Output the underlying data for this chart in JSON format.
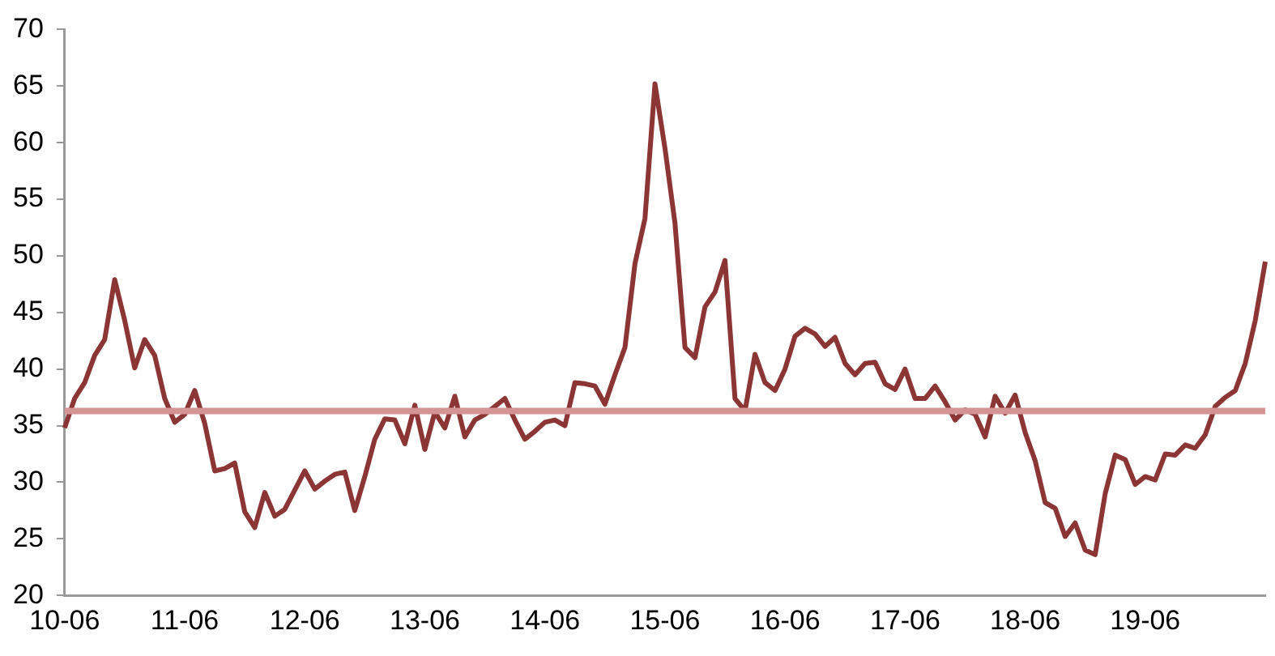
{
  "chart_data": {
    "type": "line",
    "categories": [
      "10-06",
      null,
      null,
      null,
      null,
      null,
      null,
      null,
      null,
      null,
      null,
      null,
      "11-06",
      null,
      null,
      null,
      null,
      null,
      null,
      null,
      null,
      null,
      null,
      null,
      "12-06",
      null,
      null,
      null,
      null,
      null,
      null,
      null,
      null,
      null,
      null,
      null,
      "13-06",
      null,
      null,
      null,
      null,
      null,
      null,
      null,
      null,
      null,
      null,
      null,
      "14-06",
      null,
      null,
      null,
      null,
      null,
      null,
      null,
      null,
      null,
      null,
      null,
      "15-06",
      null,
      null,
      null,
      null,
      null,
      null,
      null,
      null,
      null,
      null,
      null,
      "16-06",
      null,
      null,
      null,
      null,
      null,
      null,
      null,
      null,
      null,
      null,
      null,
      "17-06",
      null,
      null,
      null,
      null,
      null,
      null,
      null,
      null,
      null,
      null,
      null,
      "18-06",
      null,
      null,
      null,
      null,
      null,
      null,
      null,
      null,
      null,
      null,
      null,
      "19-06",
      null,
      null,
      null,
      null,
      null,
      null,
      null,
      null,
      null,
      null,
      null,
      null
    ],
    "series": [
      {
        "color": "#8b3535",
        "values": [
          34.8,
          37.4,
          38.8,
          41.2,
          42.6,
          47.9,
          44.3,
          40.1,
          42.6,
          41.2,
          37.4,
          35.3,
          36.0,
          38.1,
          35.2,
          31.0,
          31.2,
          31.7,
          27.4,
          26.0,
          29.1,
          27.0,
          27.6,
          29.3,
          31.0,
          29.4,
          30.1,
          30.7,
          30.9,
          27.5,
          30.5,
          33.8,
          35.6,
          35.5,
          33.4,
          36.8,
          32.9,
          36.2,
          34.8,
          37.6,
          34.0,
          35.5,
          36.0,
          36.7,
          37.4,
          35.5,
          33.8,
          34.5,
          35.3,
          35.5,
          35.0,
          38.8,
          38.7,
          38.5,
          36.9,
          39.5,
          41.9,
          49.3,
          53.3,
          65.2,
          59.5,
          52.9,
          41.9,
          41.0,
          45.5,
          46.8,
          49.6,
          37.4,
          36.3,
          41.3,
          38.8,
          38.1,
          40.0,
          42.9,
          43.6,
          43.1,
          42.0,
          42.8,
          40.5,
          39.5,
          40.5,
          40.6,
          38.7,
          38.2,
          40.0,
          37.4,
          37.4,
          38.5,
          37.1,
          35.5,
          36.4,
          36.0,
          34.0,
          37.6,
          36.1,
          37.7,
          34.4,
          31.9,
          28.2,
          27.7,
          25.2,
          26.4,
          24.0,
          23.6,
          29.0,
          32.4,
          32.0,
          29.8,
          30.5,
          30.2,
          32.5,
          32.4,
          33.3,
          33.0,
          34.2,
          36.7,
          37.5,
          38.1,
          40.5,
          44.3,
          49.5
        ]
      }
    ],
    "ylim": [
      20,
      70
    ],
    "yticks": [
      20,
      25,
      30,
      35,
      40,
      45,
      50,
      55,
      60,
      65,
      70
    ],
    "grid": false,
    "legend": false,
    "marker": "none",
    "line_style": "solid",
    "ref_lines": [
      {
        "axis": "y",
        "value": 36.3,
        "color": "#d49494"
      }
    ]
  }
}
